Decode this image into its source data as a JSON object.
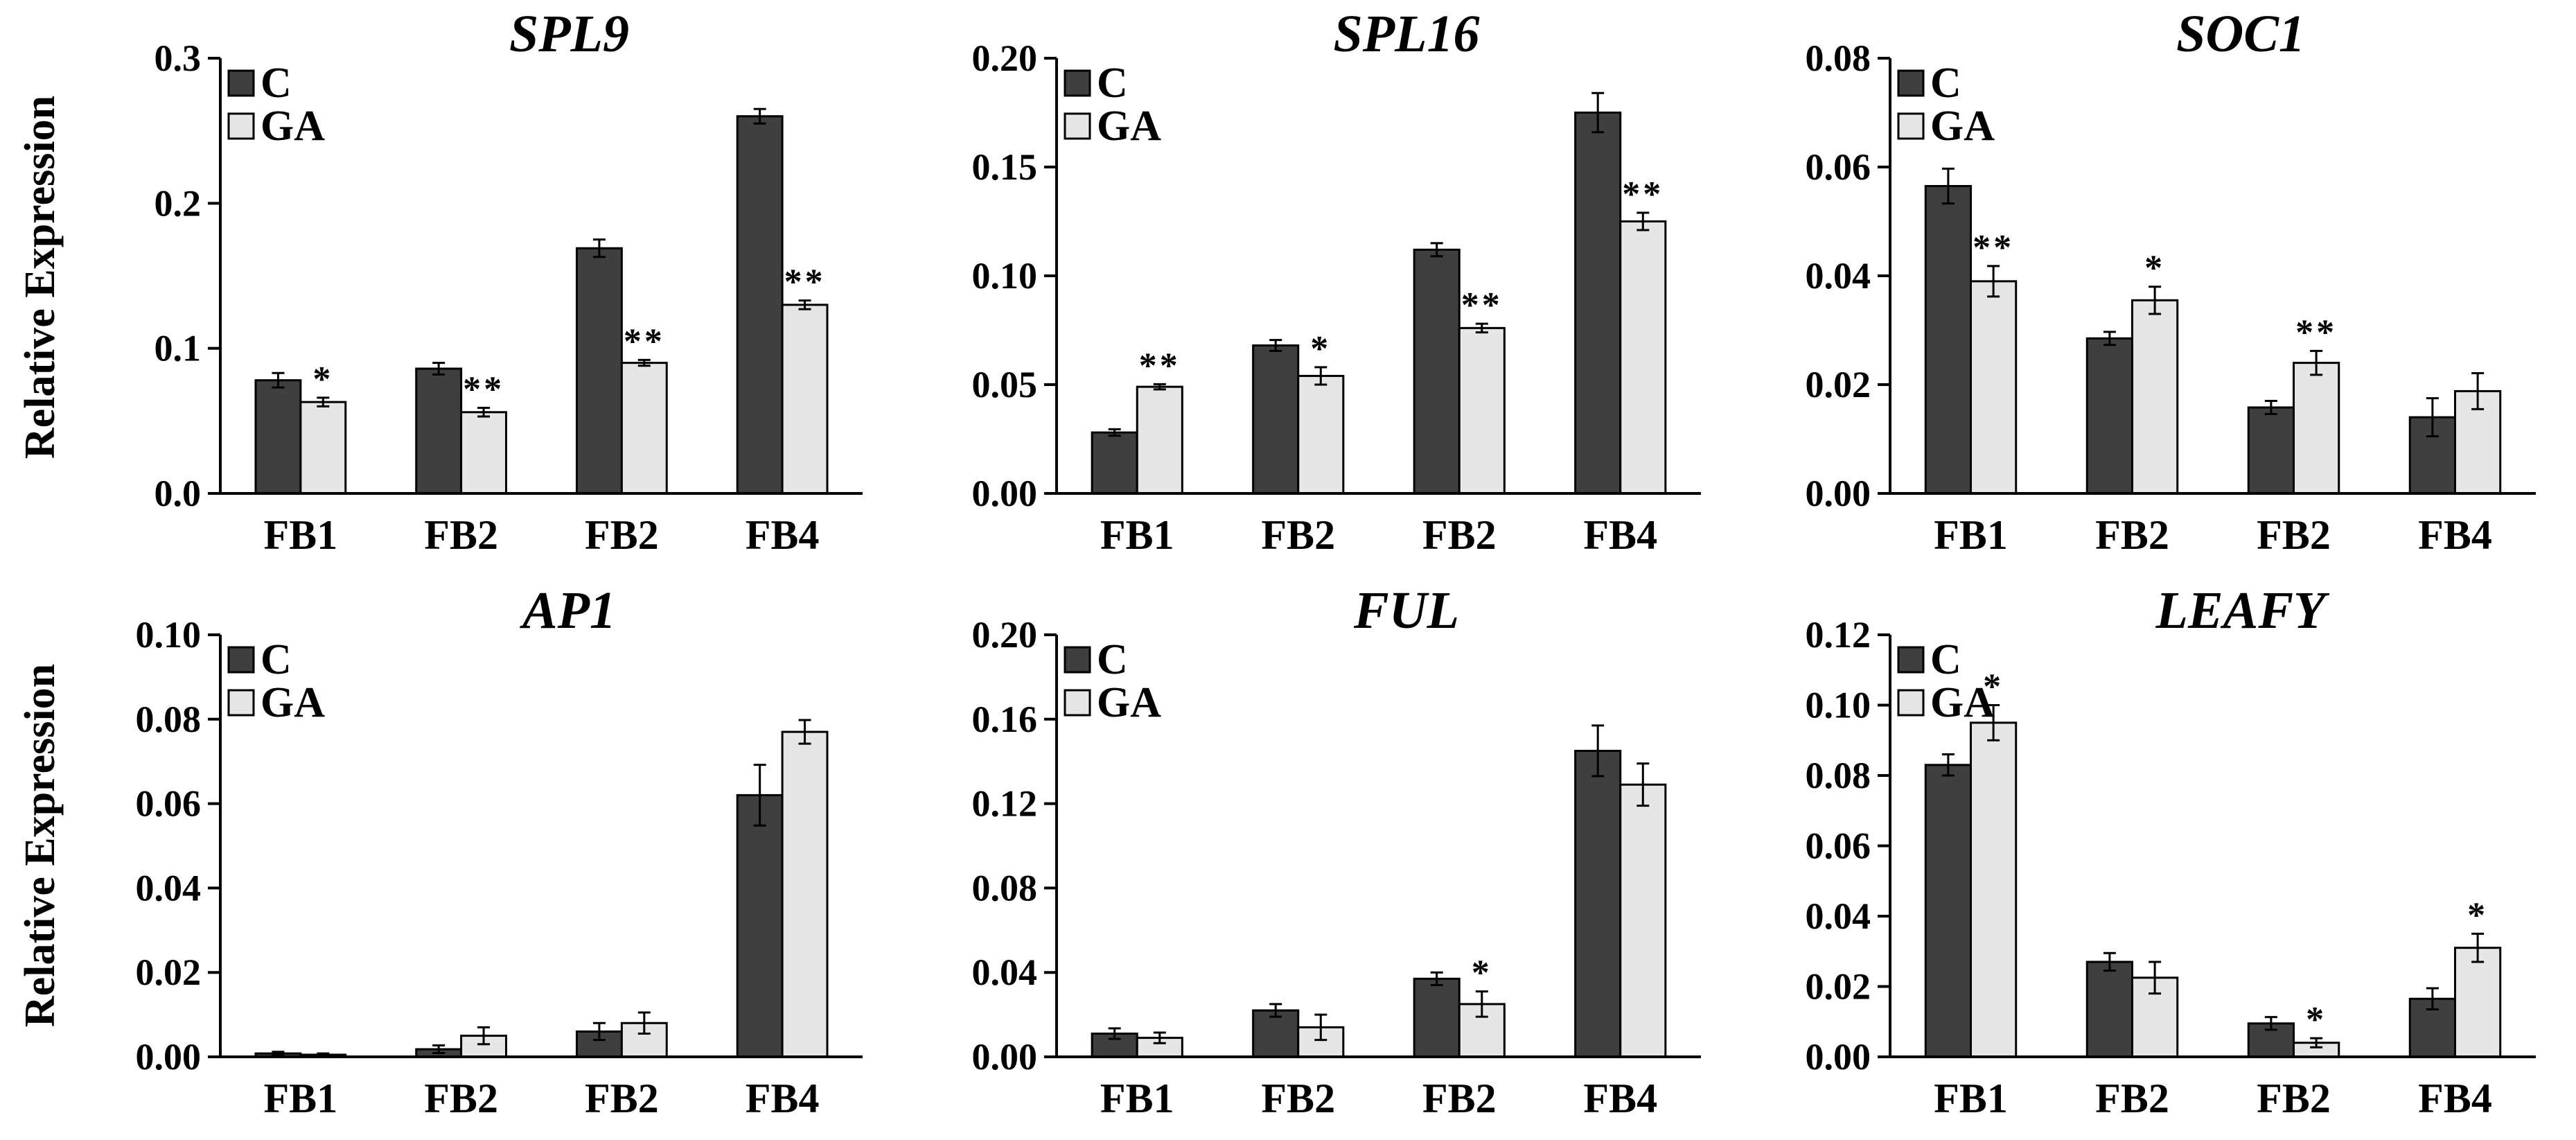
{
  "ylabel": "Relative Expression",
  "colors": {
    "C": "#3f3f3f",
    "GA": "#e6e6e6",
    "stroke": "#000000"
  },
  "chart_data": [
    {
      "type": "bar",
      "title": "SPL9",
      "xlabel": "",
      "ylabel": "Relative Expression",
      "ylim": [
        0,
        0.3
      ],
      "yticks": [
        "0.0",
        "0.1",
        "0.2",
        "0.3"
      ],
      "categories": [
        "FB1",
        "FB2",
        "FB2",
        "FB4"
      ],
      "legend": [
        "C",
        "GA"
      ],
      "series": [
        {
          "name": "C",
          "values": [
            0.078,
            0.086,
            0.169,
            0.26
          ],
          "errors": [
            0.005,
            0.004,
            0.006,
            0.005
          ],
          "sig": [
            "",
            "",
            "",
            ""
          ]
        },
        {
          "name": "GA",
          "values": [
            0.063,
            0.056,
            0.09,
            0.13
          ],
          "errors": [
            0.003,
            0.003,
            0.002,
            0.003
          ],
          "sig": [
            "*",
            "**",
            "**",
            "**"
          ]
        }
      ]
    },
    {
      "type": "bar",
      "title": "SPL16",
      "xlabel": "",
      "ylabel": "",
      "ylim": [
        0,
        0.2
      ],
      "yticks": [
        "0.00",
        "0.05",
        "0.10",
        "0.15",
        "0.20"
      ],
      "categories": [
        "FB1",
        "FB2",
        "FB2",
        "FB4"
      ],
      "legend": [
        "C",
        "GA"
      ],
      "series": [
        {
          "name": "C",
          "values": [
            0.028,
            0.068,
            0.112,
            0.175
          ],
          "errors": [
            0.0015,
            0.0025,
            0.003,
            0.009
          ],
          "sig": [
            "",
            "",
            "",
            ""
          ]
        },
        {
          "name": "GA",
          "values": [
            0.049,
            0.054,
            0.076,
            0.125
          ],
          "errors": [
            0.0012,
            0.004,
            0.002,
            0.004
          ],
          "sig": [
            "**",
            "*",
            "**",
            "**"
          ]
        }
      ]
    },
    {
      "type": "bar",
      "title": "SOC1",
      "xlabel": "",
      "ylabel": "",
      "ylim": [
        0,
        0.08
      ],
      "yticks": [
        "0.00",
        "0.02",
        "0.04",
        "0.06",
        "0.08"
      ],
      "categories": [
        "FB1",
        "FB2",
        "FB2",
        "FB4"
      ],
      "legend": [
        "C",
        "GA"
      ],
      "series": [
        {
          "name": "C",
          "values": [
            0.0565,
            0.0285,
            0.0158,
            0.014
          ],
          "errors": [
            0.0032,
            0.0012,
            0.0012,
            0.0035
          ],
          "sig": [
            "",
            "",
            "",
            ""
          ]
        },
        {
          "name": "GA",
          "values": [
            0.039,
            0.0355,
            0.024,
            0.0188
          ],
          "errors": [
            0.0028,
            0.0025,
            0.0022,
            0.0033
          ],
          "sig": [
            "**",
            "*",
            "**",
            ""
          ]
        }
      ]
    },
    {
      "type": "bar",
      "title": "AP1",
      "xlabel": "",
      "ylabel": "Relative Expression",
      "ylim": [
        0,
        0.1
      ],
      "yticks": [
        "0.00",
        "0.02",
        "0.04",
        "0.06",
        "0.08",
        "0.10"
      ],
      "categories": [
        "FB1",
        "FB2",
        "FB2",
        "FB4"
      ],
      "legend": [
        "C",
        "GA"
      ],
      "series": [
        {
          "name": "C",
          "values": [
            0.0008,
            0.0018,
            0.006,
            0.062
          ],
          "errors": [
            0.0004,
            0.0009,
            0.002,
            0.0072
          ],
          "sig": [
            "",
            "",
            "",
            ""
          ]
        },
        {
          "name": "GA",
          "values": [
            0.0005,
            0.005,
            0.008,
            0.077
          ],
          "errors": [
            0.0003,
            0.002,
            0.0025,
            0.0028
          ],
          "sig": [
            "",
            "",
            "",
            ""
          ]
        }
      ]
    },
    {
      "type": "bar",
      "title": "FUL",
      "xlabel": "",
      "ylabel": "",
      "ylim": [
        0,
        0.2
      ],
      "yticks": [
        "0.00",
        "0.04",
        "0.08",
        "0.12",
        "0.16",
        "0.20"
      ],
      "categories": [
        "FB1",
        "FB2",
        "FB2",
        "FB4"
      ],
      "legend": [
        "C",
        "GA"
      ],
      "series": [
        {
          "name": "C",
          "values": [
            0.011,
            0.022,
            0.037,
            0.145
          ],
          "errors": [
            0.0025,
            0.003,
            0.003,
            0.012
          ],
          "sig": [
            "",
            "",
            "",
            ""
          ]
        },
        {
          "name": "GA",
          "values": [
            0.009,
            0.014,
            0.025,
            0.129
          ],
          "errors": [
            0.0025,
            0.006,
            0.006,
            0.01
          ],
          "sig": [
            "",
            "",
            "*",
            ""
          ]
        }
      ]
    },
    {
      "type": "bar",
      "title": "LEAFY",
      "xlabel": "",
      "ylabel": "",
      "ylim": [
        0,
        0.12
      ],
      "yticks": [
        "0.00",
        "0.02",
        "0.04",
        "0.06",
        "0.08",
        "0.10",
        "0.12"
      ],
      "categories": [
        "FB1",
        "FB2",
        "FB2",
        "FB4"
      ],
      "legend": [
        "C",
        "GA"
      ],
      "series": [
        {
          "name": "C",
          "values": [
            0.083,
            0.027,
            0.0095,
            0.0165
          ],
          "errors": [
            0.003,
            0.0025,
            0.0018,
            0.003
          ],
          "sig": [
            "",
            "",
            "",
            ""
          ]
        },
        {
          "name": "GA",
          "values": [
            0.095,
            0.0225,
            0.004,
            0.031
          ],
          "errors": [
            0.005,
            0.0045,
            0.0013,
            0.004
          ],
          "sig": [
            "*",
            "",
            "*",
            "*"
          ]
        }
      ]
    }
  ]
}
